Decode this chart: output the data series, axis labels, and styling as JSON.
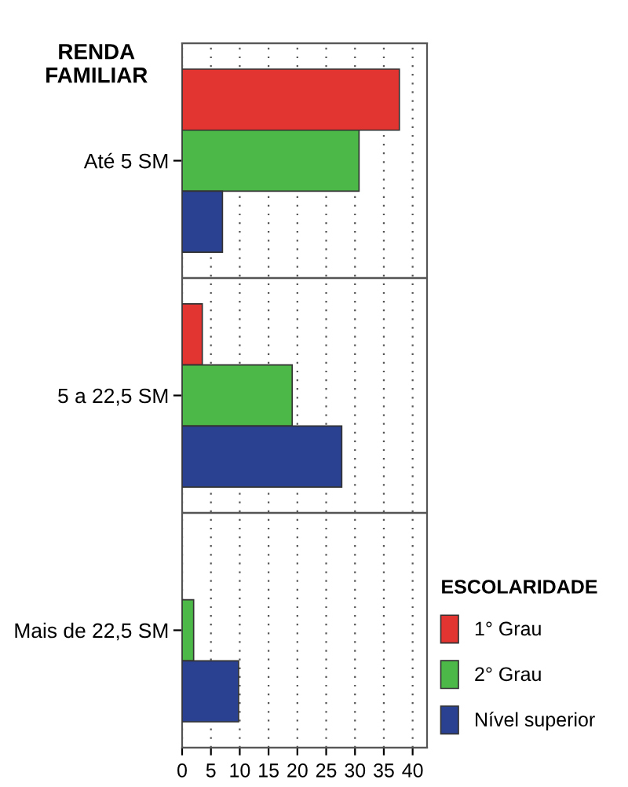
{
  "chart_data": {
    "type": "bar",
    "orientation": "horizontal",
    "ylabel": "RENDA FAMILIAR",
    "legend_title": "ESCOLARIDADE",
    "legend": "right",
    "categories": [
      "Até 5 SM",
      "5 a 22,5 SM",
      "Mais de 22,5 SM"
    ],
    "series": [
      {
        "name": "1° Grau",
        "color": "#e23430",
        "values": [
          37.7,
          3.5,
          null
        ]
      },
      {
        "name": "2° Grau",
        "color": "#4cb848",
        "values": [
          30.7,
          19.1,
          2
        ]
      },
      {
        "name": "Nível superior",
        "color": "#2a4191",
        "values": [
          7,
          27.7,
          9.8
        ]
      }
    ],
    "xlim": [
      0,
      42.5
    ],
    "xticks": [
      0,
      5,
      10,
      15,
      20,
      25,
      30,
      35,
      40
    ],
    "grid": "x"
  }
}
